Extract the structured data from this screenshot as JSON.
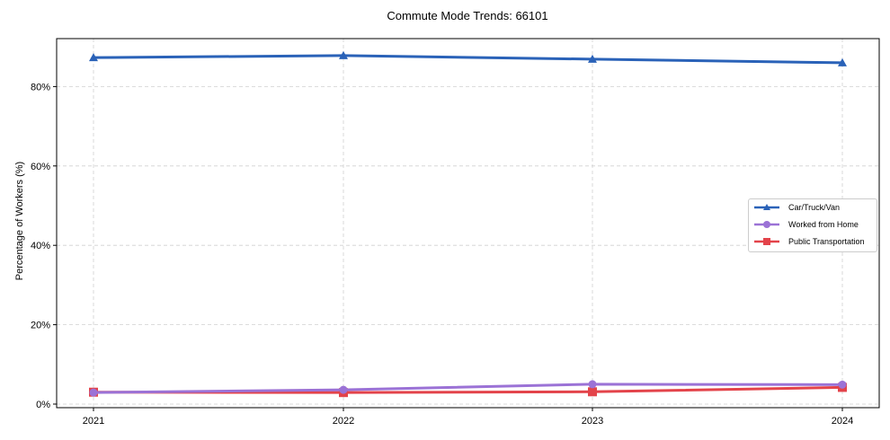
{
  "chart_data": {
    "type": "line",
    "title": "Commute Mode Trends: 66101",
    "xlabel": "",
    "ylabel": "Percentage of Workers (%)",
    "x": [
      "2021",
      "2022",
      "2023",
      "2024"
    ],
    "ylim": [
      -1,
      92
    ],
    "yticks": [
      "0%",
      "20%",
      "40%",
      "60%",
      "80%"
    ],
    "grid": true,
    "legend_position": "center right",
    "series": [
      {
        "name": "Car/Truck/Van",
        "color": "#2a62b8",
        "marker": "triangle",
        "values": [
          87.3,
          87.8,
          86.9,
          86.0
        ]
      },
      {
        "name": "Worked from Home",
        "color": "#9b72d6",
        "marker": "circle",
        "values": [
          2.9,
          3.6,
          5.0,
          4.9
        ]
      },
      {
        "name": "Public Transportation",
        "color": "#e3434a",
        "marker": "square",
        "values": [
          3.0,
          2.9,
          3.1,
          4.2
        ]
      }
    ]
  }
}
